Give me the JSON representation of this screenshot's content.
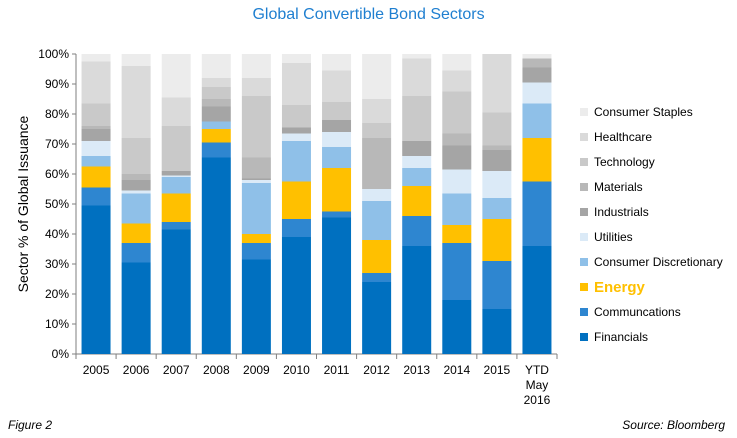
{
  "figure_label": "Figure 2",
  "source": "Source: Bloomberg",
  "chart_data": {
    "type": "bar",
    "stacked": true,
    "title": "Global Convertible Bond Sectors",
    "ylabel": "Sector % of Global Issuance",
    "ylim": [
      0,
      100
    ],
    "yticks": [
      "0%",
      "10%",
      "20%",
      "30%",
      "40%",
      "50%",
      "60%",
      "70%",
      "80%",
      "90%",
      "100%"
    ],
    "categories": [
      "2005",
      "2006",
      "2007",
      "2008",
      "2009",
      "2010",
      "2011",
      "2012",
      "2013",
      "2014",
      "2015",
      "YTD May 2016"
    ],
    "category_labels": [
      [
        "2005"
      ],
      [
        "2006"
      ],
      [
        "2007"
      ],
      [
        "2008"
      ],
      [
        "2009"
      ],
      [
        "2010"
      ],
      [
        "2011"
      ],
      [
        "2012"
      ],
      [
        "2013"
      ],
      [
        "2014"
      ],
      [
        "2015"
      ],
      [
        "YTD",
        "May",
        "2016"
      ]
    ],
    "legend_position": "right",
    "grid": false,
    "series": [
      {
        "name": "Financials",
        "color": "#0070c0",
        "values": [
          49.5,
          30.5,
          41.5,
          65.5,
          31.5,
          39,
          45.5,
          24,
          36,
          18,
          15,
          36
        ]
      },
      {
        "name": "Communcations",
        "color": "#2e86d0",
        "values": [
          6,
          6.5,
          2.5,
          5,
          5.5,
          6,
          2,
          3,
          10,
          19,
          16,
          21.5
        ]
      },
      {
        "name": "Energy",
        "color": "#ffc000",
        "values": [
          7,
          6.5,
          9.5,
          4.5,
          3,
          12.5,
          14.5,
          11,
          10,
          6,
          14,
          14.5
        ]
      },
      {
        "name": "Consumer Discretionary",
        "color": "#8fc0e8",
        "values": [
          3.5,
          10,
          5.5,
          2.5,
          17,
          13.5,
          7,
          13,
          6,
          10.5,
          7,
          11.5
        ]
      },
      {
        "name": "Utilities",
        "color": "#dbeaf7",
        "values": [
          5,
          1,
          0.5,
          0,
          1,
          2.5,
          5,
          4,
          4,
          8,
          9,
          7
        ]
      },
      {
        "name": "Industrials",
        "color": "#a5a5a5",
        "values": [
          4,
          3.5,
          1.5,
          5,
          0.5,
          2,
          4,
          0,
          5,
          8,
          7,
          5
        ]
      },
      {
        "name": "Materials",
        "color": "#b8b8b8",
        "values": [
          1,
          2,
          0,
          2.5,
          7,
          0,
          0,
          17,
          0,
          4,
          1.5,
          3
        ]
      },
      {
        "name": "Technology",
        "color": "#c9c9c9",
        "values": [
          7.5,
          12,
          15,
          4,
          20.5,
          7.5,
          6,
          5,
          15,
          14,
          11,
          0
        ]
      },
      {
        "name": "Healthcare",
        "color": "#dadada",
        "values": [
          14,
          24,
          9.5,
          3,
          6,
          14,
          10.5,
          8,
          12.5,
          7,
          19.5,
          0
        ]
      },
      {
        "name": "Consumer Staples",
        "color": "#ececec",
        "values": [
          2.5,
          4,
          14.5,
          8,
          8,
          3,
          5.5,
          15,
          1.5,
          5.5,
          0,
          1.5
        ]
      }
    ]
  }
}
